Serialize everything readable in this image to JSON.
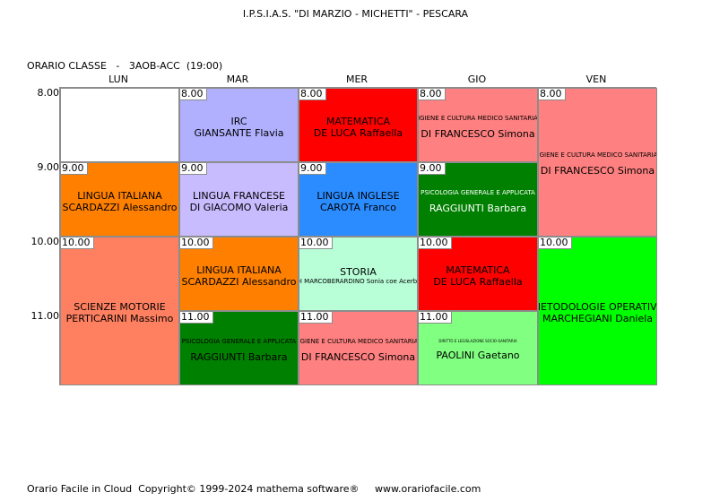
{
  "header": {
    "school": "I.P.S.I.A.S. \"DI MARZIO - MICHETTI\" - PESCARA",
    "class_label": "ORARIO CLASSE   -   3AOB-ACC  (19:00)"
  },
  "days": [
    "LUN",
    "MAR",
    "MER",
    "GIO",
    "VEN"
  ],
  "hours": [
    "8.00",
    "9.00",
    "10.00",
    "11.00"
  ],
  "lessons": [
    {
      "id": "lun-8",
      "start": "",
      "subject": "",
      "teacher": "",
      "color": "#ffffff"
    },
    {
      "id": "lun-9",
      "start": "9.00",
      "subject": "LINGUA ITALIANA",
      "teacher": "SCARDAZZI Alessandro",
      "color": "#ff8000"
    },
    {
      "id": "lun-10",
      "start": "10.00",
      "subject": "SCIENZE MOTORIE",
      "teacher": "PERTICARINI Massimo",
      "color": "#ff8060"
    },
    {
      "id": "mar-8",
      "start": "8.00",
      "subject": "IRC",
      "teacher": "GIANSANTE Flavia",
      "color": "#b0b0ff"
    },
    {
      "id": "mar-9",
      "start": "9.00",
      "subject": "LINGUA FRANCESE",
      "teacher": "DI GIACOMO Valeria",
      "color": "#c8bcff"
    },
    {
      "id": "mar-10",
      "start": "10.00",
      "subject": "LINGUA ITALIANA",
      "teacher": "SCARDAZZI Alessandro",
      "color": "#ff8000"
    },
    {
      "id": "mar-11",
      "start": "11.00",
      "subject": "PSICOLOGIA GENERALE E APPLICATA",
      "teacher": "RAGGIUNTI Barbara",
      "color": "#008000"
    },
    {
      "id": "mer-8",
      "start": "8.00",
      "subject": "MATEMATICA",
      "teacher": "DE LUCA Raffaella",
      "color": "#ff0000"
    },
    {
      "id": "mer-9",
      "start": "9.00",
      "subject": "LINGUA INGLESE",
      "teacher": "CAROTA Franco",
      "color": "#2b8cff"
    },
    {
      "id": "mer-10",
      "start": "10.00",
      "subject": "STORIA",
      "teacher": "DI MARCOBERARDINO Sonia coe Acerbo",
      "color": "#b8ffd8"
    },
    {
      "id": "mer-11",
      "start": "11.00",
      "subject": "IGIENE E CULTURA MEDICO SANITARIA",
      "teacher": "DI FRANCESCO Simona",
      "color": "#ff8080"
    },
    {
      "id": "gio-8",
      "start": "8.00",
      "subject": "IGIENE E CULTURA MEDICO SANITARIA",
      "teacher": "DI FRANCESCO Simona",
      "color": "#ff8080"
    },
    {
      "id": "gio-9",
      "start": "9.00",
      "subject": "PSICOLOGIA GENERALE E APPLICATA",
      "teacher": "RAGGIUNTI Barbara",
      "color": "#008000"
    },
    {
      "id": "gio-10",
      "start": "10.00",
      "subject": "MATEMATICA",
      "teacher": "DE LUCA Raffaella",
      "color": "#ff0000"
    },
    {
      "id": "gio-11",
      "start": "11.00",
      "subject": "DIRITTO E LEGISLAZIONE SOCIO-SANITARIA",
      "teacher": "PAOLINI Gaetano",
      "color": "#80ff80"
    },
    {
      "id": "ven-8",
      "start": "8.00",
      "subject": "IGIENE E CULTURA MEDICO SANITARIA",
      "teacher": "DI FRANCESCO Simona",
      "color": "#ff8080"
    },
    {
      "id": "ven-10",
      "start": "10.00",
      "subject": "METODOLOGIE OPERATIVE",
      "teacher": "MARCHEGIANI Daniela",
      "color": "#00ff00"
    }
  ],
  "footer": "Orario Facile in Cloud  Copyright© 1999-2024 mathema software®     www.orariofacile.com"
}
